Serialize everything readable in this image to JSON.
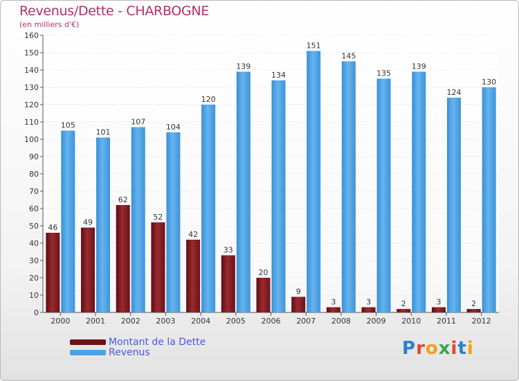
{
  "header": {
    "title": "Revenus/Dette - CHARBOGNE",
    "subtitle": "(en milliers d'€)"
  },
  "legend": {
    "debt_label": "Montant de la Dette",
    "revenue_label": "Revenus"
  },
  "logo": {
    "text": "Proxiti"
  },
  "colors": {
    "debt": "#8a1f24",
    "revenue": "#4aa3e6",
    "axis_text": "#333333",
    "title": "#b0306a"
  },
  "chart_data": {
    "type": "bar",
    "title": "Revenus/Dette - CHARBOGNE",
    "ylabel": "(en milliers d'€)",
    "xlabel": "",
    "categories": [
      "2000",
      "2001",
      "2002",
      "2003",
      "2004",
      "2005",
      "2006",
      "2007",
      "2008",
      "2009",
      "2010",
      "2011",
      "2012"
    ],
    "series": [
      {
        "name": "Montant de la Dette",
        "values": [
          46,
          49,
          62,
          52,
          42,
          33,
          20,
          9,
          3,
          3,
          2,
          3,
          2
        ]
      },
      {
        "name": "Revenus",
        "values": [
          105,
          101,
          107,
          104,
          120,
          139,
          134,
          151,
          145,
          135,
          139,
          124,
          130
        ]
      }
    ],
    "ylim": [
      0,
      160
    ],
    "yticks": [
      0,
      10,
      20,
      30,
      40,
      50,
      60,
      70,
      80,
      90,
      100,
      110,
      120,
      130,
      140,
      150,
      160
    ],
    "grid": true,
    "legend_position": "bottom-left"
  }
}
